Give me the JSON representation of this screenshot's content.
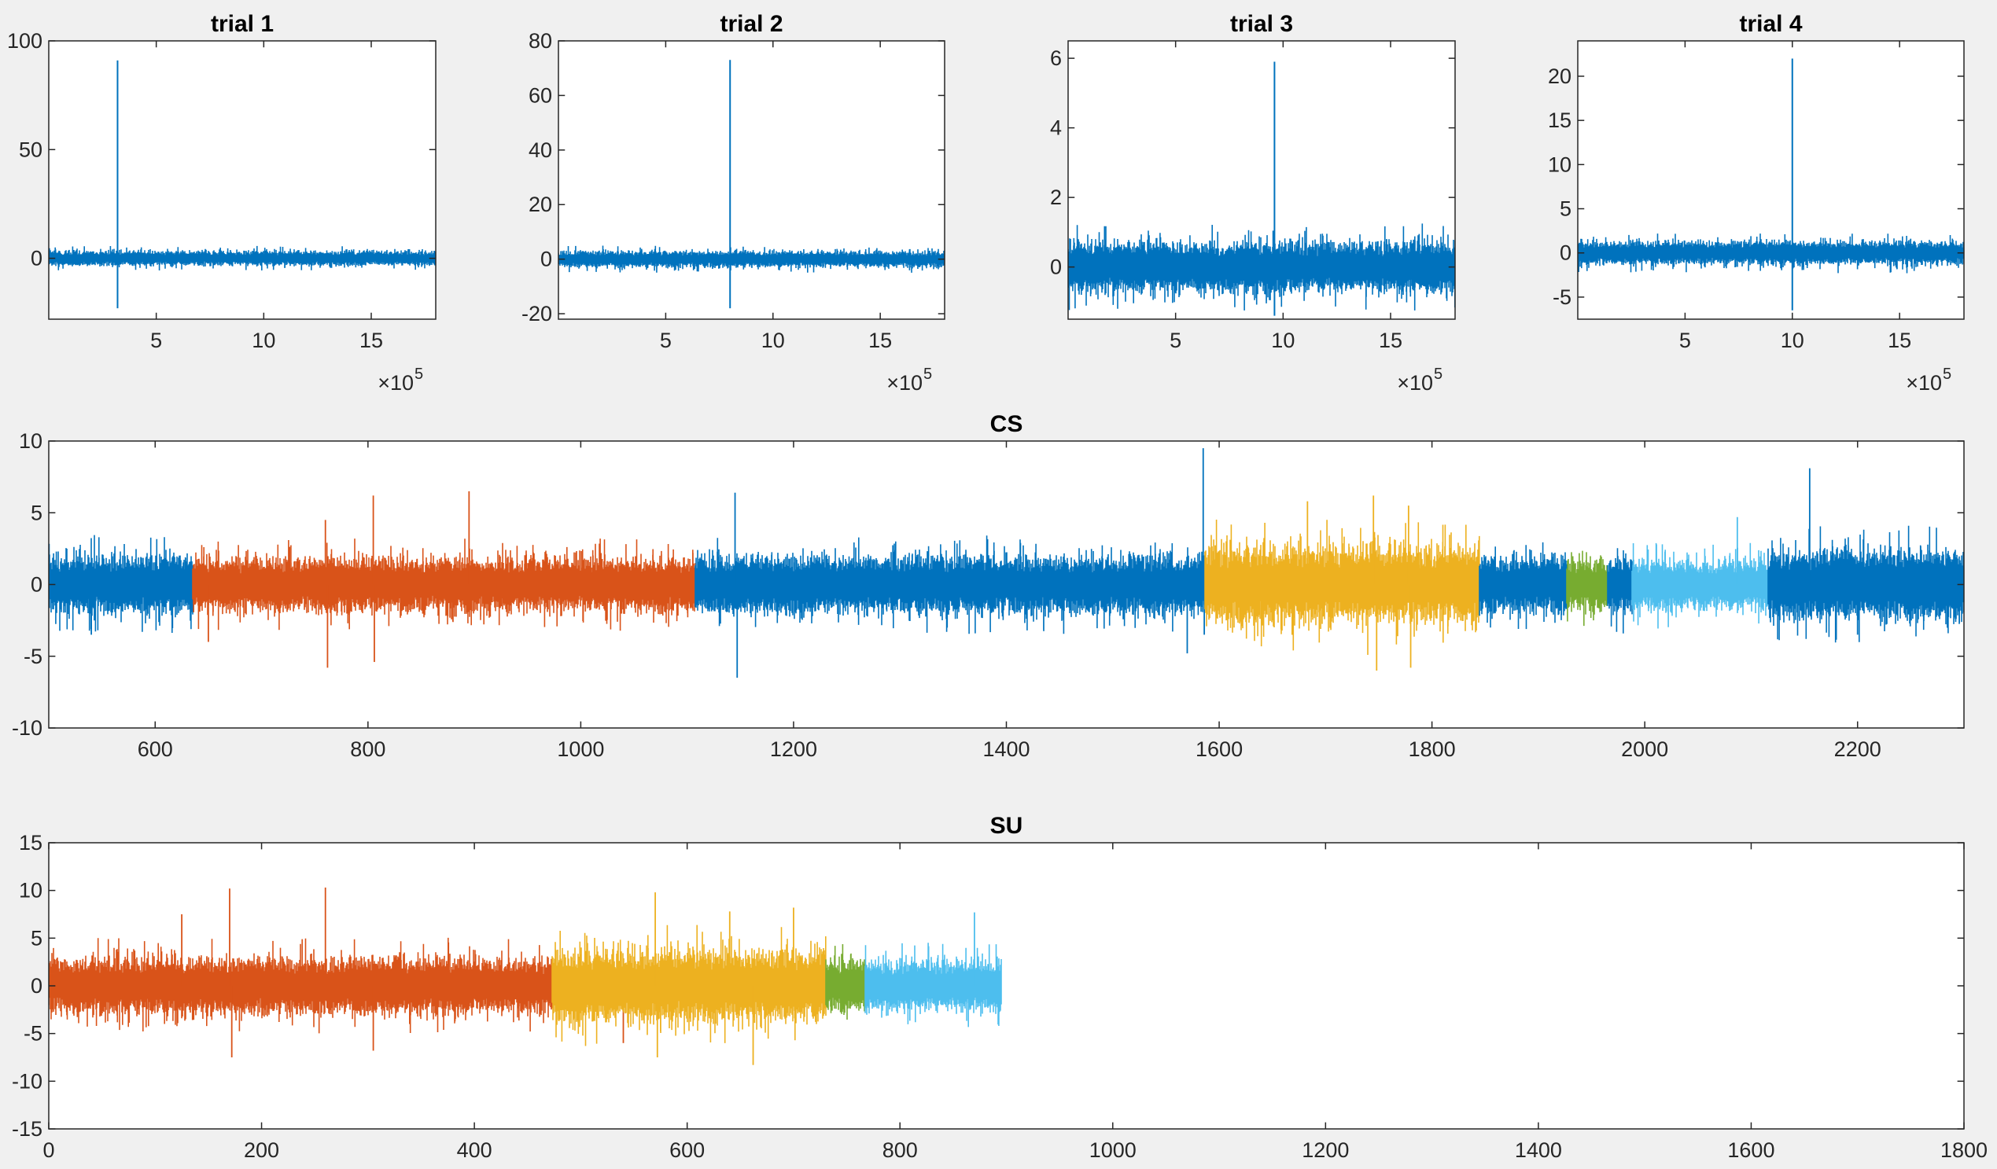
{
  "chart_data": [
    {
      "id": "trial1",
      "type": "line",
      "title": "trial 1",
      "xlim": [
        0,
        1800000
      ],
      "ylim": [
        -28,
        100
      ],
      "xticks": [
        500000,
        1000000,
        1500000
      ],
      "xtick_labels": [
        "5",
        "10",
        "15"
      ],
      "yticks": [
        0,
        50,
        100
      ],
      "ytick_labels": [
        "0",
        "50",
        "100"
      ],
      "x_exponent_label": "×10",
      "x_exponent_power": "5",
      "series": [
        {
          "color": "#0072BD",
          "x": [
            0,
            1800000
          ],
          "noise_amplitude": 2.5,
          "spike_x": 320000,
          "spike_values": [
            91,
            -23
          ]
        }
      ]
    },
    {
      "id": "trial2",
      "type": "line",
      "title": "trial 2",
      "xlim": [
        0,
        1800000
      ],
      "ylim": [
        -22,
        80
      ],
      "xticks": [
        500000,
        1000000,
        1500000
      ],
      "xtick_labels": [
        "5",
        "10",
        "15"
      ],
      "yticks": [
        -20,
        0,
        20,
        40,
        60,
        80
      ],
      "ytick_labels": [
        "-20",
        "0",
        "20",
        "40",
        "60",
        "80"
      ],
      "x_exponent_label": "×10",
      "x_exponent_power": "5",
      "series": [
        {
          "color": "#0072BD",
          "x": [
            0,
            1800000
          ],
          "noise_amplitude": 2.2,
          "spike_x": 800000,
          "spike_values": [
            73,
            -18
          ]
        }
      ]
    },
    {
      "id": "trial3",
      "type": "line",
      "title": "trial 3",
      "xlim": [
        0,
        1800000
      ],
      "ylim": [
        -1.5,
        6.5
      ],
      "xticks": [
        500000,
        1000000,
        1500000
      ],
      "xtick_labels": [
        "5",
        "10",
        "15"
      ],
      "yticks": [
        0,
        2,
        4,
        6
      ],
      "ytick_labels": [
        "0",
        "2",
        "4",
        "6"
      ],
      "x_exponent_label": "×10",
      "x_exponent_power": "5",
      "series": [
        {
          "color": "#0072BD",
          "x": [
            0,
            1800000
          ],
          "noise_amplitude": 0.55,
          "spike_x": 960000,
          "spike_values": [
            5.9,
            -1.4
          ]
        }
      ]
    },
    {
      "id": "trial4",
      "type": "line",
      "title": "trial 4",
      "xlim": [
        0,
        1800000
      ],
      "ylim": [
        -7.5,
        24
      ],
      "xticks": [
        500000,
        1000000,
        1500000
      ],
      "xtick_labels": [
        "5",
        "10",
        "15"
      ],
      "yticks": [
        -5,
        0,
        5,
        10,
        15,
        20
      ],
      "ytick_labels": [
        "-5",
        "0",
        "5",
        "10",
        "15",
        "20"
      ],
      "x_exponent_label": "×10",
      "x_exponent_power": "5",
      "series": [
        {
          "color": "#0072BD",
          "x": [
            0,
            1800000
          ],
          "noise_amplitude": 1.0,
          "spike_x": 1000000,
          "spike_values": [
            22,
            -6.5
          ]
        }
      ]
    },
    {
      "id": "cs",
      "type": "line",
      "title": "CS",
      "xlim": [
        500,
        2300
      ],
      "ylim": [
        -10,
        10
      ],
      "xticks": [
        600,
        800,
        1000,
        1200,
        1400,
        1600,
        1800,
        2000,
        2200
      ],
      "xtick_labels": [
        "600",
        "800",
        "1000",
        "1200",
        "1400",
        "1600",
        "1800",
        "2000",
        "2200"
      ],
      "yticks": [
        -10,
        -5,
        0,
        5,
        10
      ],
      "ytick_labels": [
        "-10",
        "-5",
        "0",
        "5",
        "10"
      ],
      "series": [
        {
          "color": "#0072BD",
          "x": [
            500,
            635
          ],
          "noise_amplitude": 1.5,
          "spikes": [
            [
              540,
              -3.5
            ]
          ]
        },
        {
          "color": "#D95319",
          "x": [
            635,
            1108
          ],
          "noise_amplitude": 1.4,
          "spikes": [
            [
              760,
              4.5
            ],
            [
              762,
              -5.8
            ],
            [
              805,
              6.2
            ],
            [
              806,
              -5.4
            ],
            [
              895,
              6.5
            ],
            [
              650,
              -4.0
            ]
          ]
        },
        {
          "color": "#0072BD",
          "x": [
            1108,
            1587
          ],
          "noise_amplitude": 1.5,
          "spikes": [
            [
              1145,
              6.4
            ],
            [
              1147,
              -6.5
            ],
            [
              1585,
              9.5
            ],
            [
              1586,
              -3.5
            ],
            [
              1570,
              -4.8
            ]
          ]
        },
        {
          "color": "#EDB120",
          "x": [
            1587,
            1845
          ],
          "noise_amplitude": 2.0,
          "spikes": [
            [
              1683,
              5.8
            ],
            [
              1745,
              6.2
            ],
            [
              1748,
              -6.0
            ],
            [
              1778,
              5.5
            ],
            [
              1780,
              -5.8
            ]
          ]
        },
        {
          "color": "#0072BD",
          "x": [
            1845,
            1927
          ],
          "noise_amplitude": 1.5,
          "spikes": []
        },
        {
          "color": "#77AC30",
          "x": [
            1927,
            1965
          ],
          "noise_amplitude": 1.3,
          "spikes": []
        },
        {
          "color": "#0072BD",
          "x": [
            1965,
            1988
          ],
          "noise_amplitude": 1.5,
          "spikes": []
        },
        {
          "color": "#4DBEEE",
          "x": [
            1988,
            2116
          ],
          "noise_amplitude": 1.3,
          "spikes": [
            [
              2087,
              4.7
            ]
          ]
        },
        {
          "color": "#0072BD",
          "x": [
            2116,
            2300
          ],
          "noise_amplitude": 1.8,
          "spikes": [
            [
              2155,
              8.1
            ],
            [
              2200,
              -3.5
            ]
          ]
        }
      ]
    },
    {
      "id": "su",
      "type": "line",
      "title": "SU",
      "xlim": [
        0,
        1800
      ],
      "ylim": [
        -15,
        15
      ],
      "xticks": [
        0,
        200,
        400,
        600,
        800,
        1000,
        1200,
        1400,
        1600,
        1800
      ],
      "xtick_labels": [
        "0",
        "200",
        "400",
        "600",
        "800",
        "1000",
        "1200",
        "1400",
        "1600",
        "1800"
      ],
      "yticks": [
        -15,
        -10,
        -5,
        0,
        5,
        10,
        15
      ],
      "ytick_labels": [
        "-15",
        "-10",
        "-5",
        "0",
        "5",
        "10",
        "15"
      ],
      "series": [
        {
          "color": "#D95319",
          "x": [
            0,
            473
          ],
          "noise_amplitude": 2.2,
          "spikes": [
            [
              125,
              7.5
            ],
            [
              170,
              10.2
            ],
            [
              172,
              -7.5
            ],
            [
              260,
              10.3
            ],
            [
              305,
              -6.8
            ],
            [
              540,
              -6.0
            ]
          ]
        },
        {
          "color": "#EDB120",
          "x": [
            473,
            730
          ],
          "noise_amplitude": 2.8,
          "spikes": [
            [
              570,
              9.8
            ],
            [
              572,
              -7.5
            ],
            [
              640,
              7.8
            ],
            [
              662,
              -8.3
            ],
            [
              700,
              8.2
            ]
          ]
        },
        {
          "color": "#77AC30",
          "x": [
            730,
            767
          ],
          "noise_amplitude": 2.0,
          "spikes": []
        },
        {
          "color": "#4DBEEE",
          "x": [
            767,
            895
          ],
          "noise_amplitude": 2.0,
          "spikes": [
            [
              870,
              7.7
            ]
          ]
        }
      ]
    }
  ]
}
